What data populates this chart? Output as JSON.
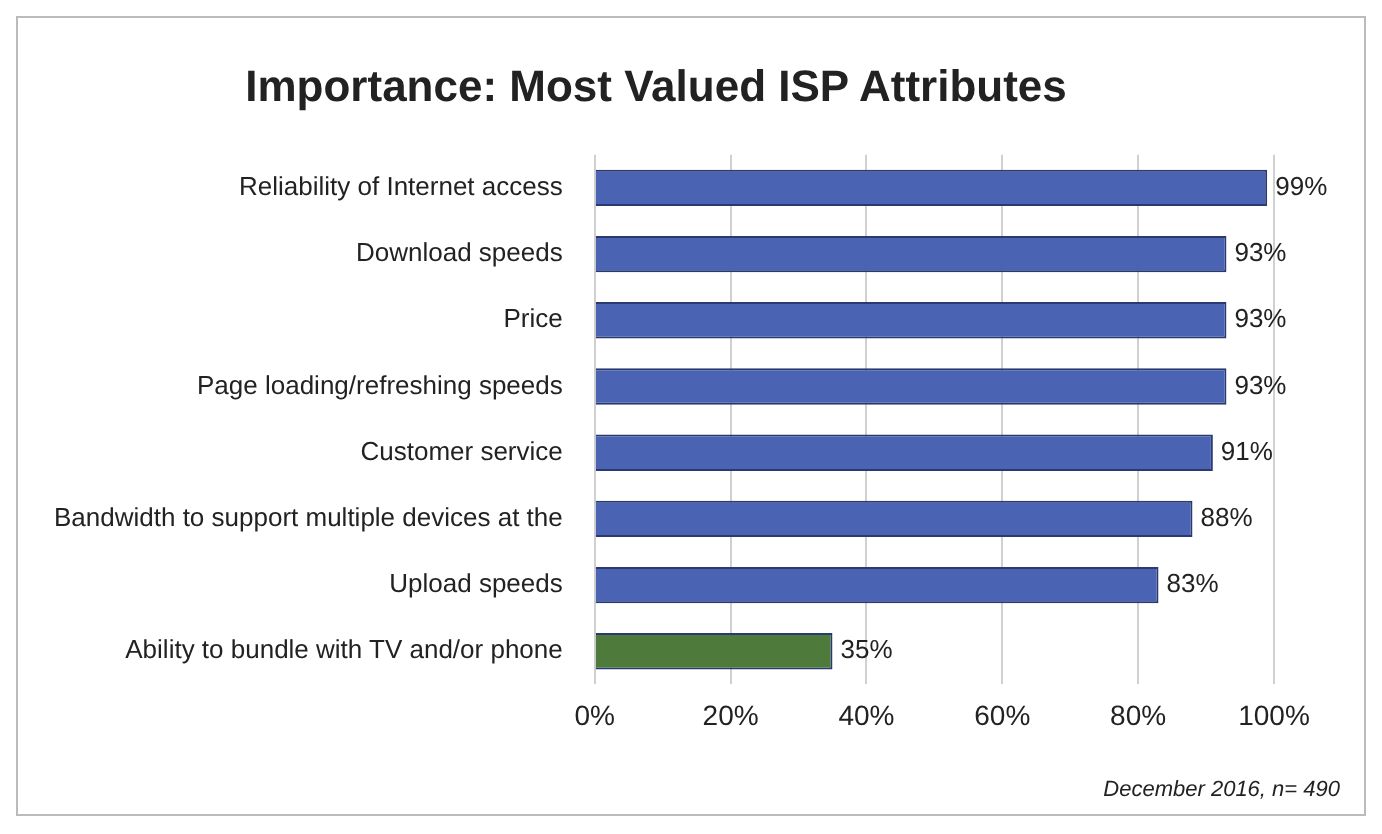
{
  "chart_data": {
    "type": "bar",
    "orientation": "horizontal",
    "title": "Importance: Most Valued ISP Attributes",
    "categories": [
      "Reliability of Internet access",
      "Download speeds",
      "Price",
      "Page loading/refreshing speeds",
      "Customer service",
      "Bandwidth to support multiple devices at the",
      "Upload speeds",
      "Ability to bundle with TV and/or phone"
    ],
    "values": [
      99,
      93,
      93,
      93,
      91,
      88,
      83,
      35
    ],
    "colors": [
      "#4a63b3",
      "#4a63b3",
      "#4a63b3",
      "#4a63b3",
      "#4a63b3",
      "#4a63b3",
      "#4a63b3",
      "#4e7a3c"
    ],
    "value_labels": [
      "99%",
      "93%",
      "93%",
      "93%",
      "91%",
      "88%",
      "83%",
      "35%"
    ],
    "xlim": [
      0,
      100
    ],
    "xticks": [
      {
        "value": 0,
        "label": "0%"
      },
      {
        "value": 20,
        "label": "20%"
      },
      {
        "value": 40,
        "label": "40%"
      },
      {
        "value": 60,
        "label": "60%"
      },
      {
        "value": 80,
        "label": "80%"
      },
      {
        "value": 100,
        "label": "100%"
      }
    ],
    "grid": "x",
    "legend": false,
    "annotations": [
      "December 2016, n= 490"
    ]
  }
}
